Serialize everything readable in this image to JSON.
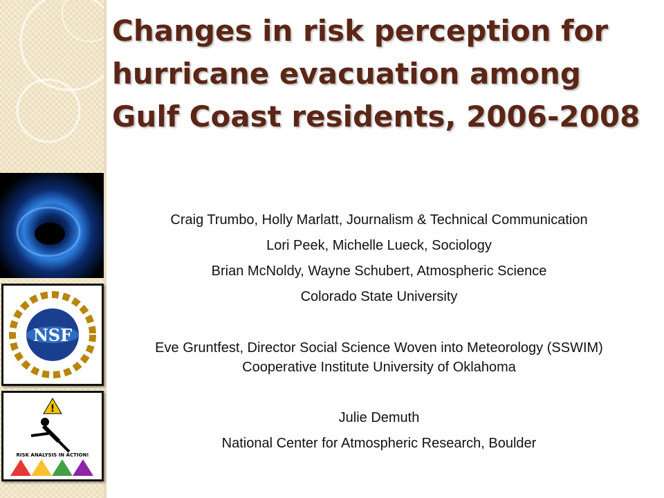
{
  "title": {
    "lines": [
      "Changes in risk perception for",
      "hurricane evacuation among",
      "Gulf Coast residents, 2006-2008"
    ]
  },
  "body": [
    "Craig Trumbo, Holly Marlatt, Journalism & Technical Communication",
    "Lori Peek, Michelle Lueck, Sociology",
    "Brian McNoldy, Wayne Schubert,  Atmospheric Science",
    "Colorado State University",
    "Eve Gruntfest, Director Social Science Woven into Meteorology (SSWIM)",
    "Cooperative Institute University of Oklahoma",
    "Julie Demuth",
    "National Center for Atmospheric Research, Boulder"
  ],
  "logos": {
    "nsf": "NSF",
    "risk": "RISK ANALYSIS IN ACTION!"
  }
}
